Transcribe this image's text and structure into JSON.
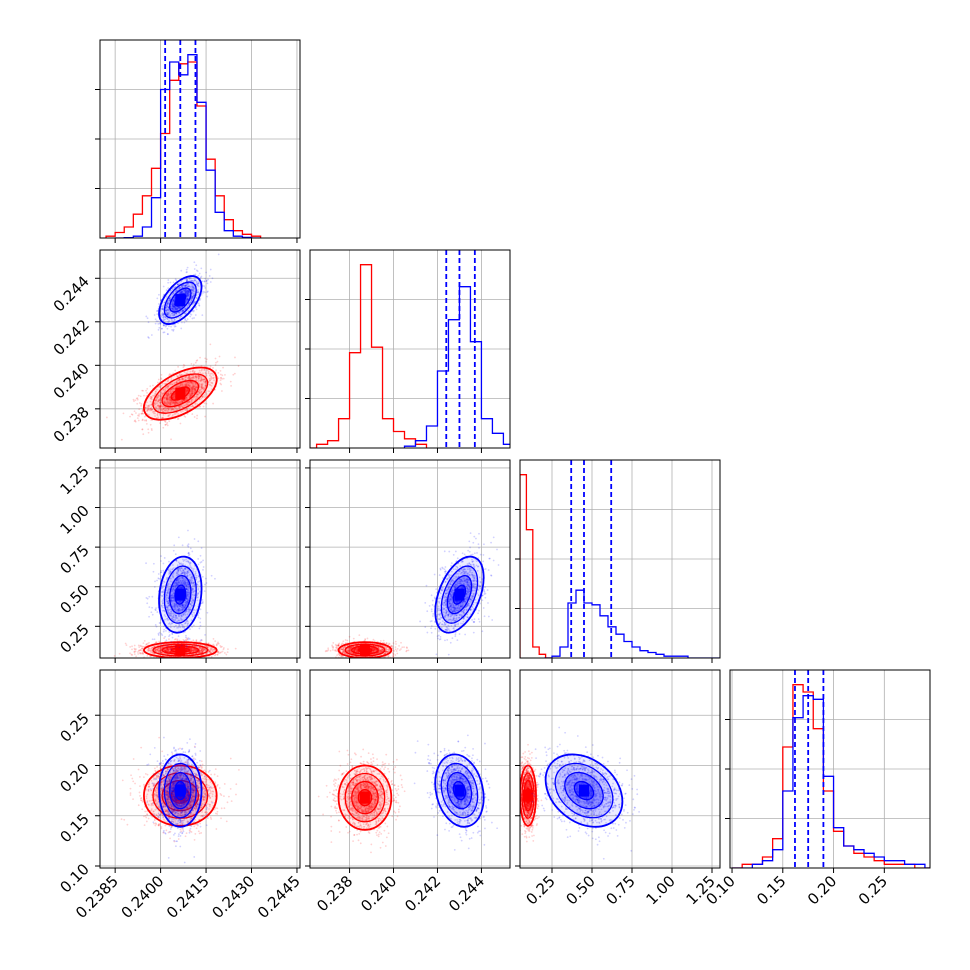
{
  "chart_data": {
    "type": "corner-plot",
    "colors": {
      "series_a": "#0000ff",
      "series_b": "#ff0000",
      "grid": "#b0b0b0",
      "frame": "#000000"
    },
    "series_names": [
      "blue",
      "red"
    ],
    "variables": [
      {
        "range": [
          0.238,
          0.2446
        ],
        "ticks": [
          0.2385,
          0.24,
          0.2415,
          0.243,
          0.2445
        ],
        "tick_labels": [
          "0.2385",
          "0.2400",
          "0.2415",
          "0.2430",
          "0.2445"
        ]
      },
      {
        "range": [
          0.2362,
          0.2453
        ],
        "ticks": [
          0.238,
          0.24,
          0.242,
          0.244
        ],
        "tick_labels": [
          "0.238",
          "0.240",
          "0.242",
          "0.244"
        ]
      },
      {
        "range": [
          0.05,
          1.3
        ],
        "ticks": [
          0.25,
          0.5,
          0.75,
          1.0,
          1.25
        ],
        "tick_labels": [
          "0.25",
          "0.50",
          "0.75",
          "1.00",
          "1.25"
        ]
      },
      {
        "range": [
          0.098,
          0.295
        ],
        "ticks": [
          0.1,
          0.15,
          0.2,
          0.25
        ],
        "tick_labels": [
          "0.10",
          "0.15",
          "0.20",
          "0.25"
        ]
      }
    ],
    "histograms": [
      {
        "var": 0,
        "quantiles": [
          0.24015,
          0.24065,
          0.24115
        ],
        "series": [
          {
            "name": "blue",
            "edges": [
              0.2385,
              0.2388,
              0.2391,
              0.2394,
              0.2397,
              0.24,
              0.2403,
              0.2406,
              0.2409,
              0.2412,
              0.2415,
              0.2418,
              0.2421,
              0.2424,
              0.2427,
              0.243,
              0.2433
            ],
            "counts": [
              0,
              0.2,
              1,
              6,
              22,
              81,
              96,
              89,
              100,
              74,
              37,
              14,
              4,
              1,
              0.3,
              0
            ]
          },
          {
            "name": "red",
            "edges": [
              0.2382,
              0.2385,
              0.2388,
              0.2391,
              0.2394,
              0.2397,
              0.24,
              0.2403,
              0.2406,
              0.2409,
              0.2412,
              0.2415,
              0.2418,
              0.2421,
              0.2424,
              0.2427,
              0.243,
              0.2433
            ],
            "counts": [
              1,
              3,
              6,
              13,
              23,
              38,
              57,
              86,
              95,
              96,
              72,
              43,
              23,
              10,
              4,
              2,
              1
            ]
          }
        ]
      },
      {
        "var": 1,
        "quantiles": [
          0.2424,
          0.243,
          0.2437
        ],
        "series": [
          {
            "name": "blue",
            "edges": [
              0.2405,
              0.241,
              0.2415,
              0.242,
              0.2425,
              0.243,
              0.2435,
              0.244,
              0.2445,
              0.245,
              0.2455
            ],
            "counts": [
              1,
              4,
              12,
              42,
              70,
              88,
              58,
              16,
              8,
              2
            ]
          },
          {
            "name": "red",
            "edges": [
              0.236,
              0.2365,
              0.237,
              0.2375,
              0.238,
              0.2385,
              0.239,
              0.2395,
              0.24,
              0.2405,
              0.241,
              0.2415
            ],
            "counts": [
              0,
              2,
              4,
              16,
              52,
              100,
              55,
              16,
              9,
              5,
              2
            ]
          }
        ]
      },
      {
        "var": 2,
        "quantiles": [
          0.37,
          0.45,
          0.62
        ],
        "series": [
          {
            "name": "blue",
            "edges": [
              0.2,
              0.25,
              0.3,
              0.35,
              0.4,
              0.45,
              0.5,
              0.55,
              0.6,
              0.65,
              0.7,
              0.75,
              0.8,
              0.85,
              0.9,
              0.95,
              1.0,
              1.1,
              1.3
            ],
            "counts": [
              0,
              1,
              6,
              30,
              37,
              30,
              29,
              23,
              17,
              13,
              9,
              6,
              4,
              3,
              2,
              1,
              1,
              0
            ]
          },
          {
            "name": "red",
            "edges": [
              0.05,
              0.09,
              0.13,
              0.17,
              0.21,
              0.25
            ],
            "counts": [
              100,
              70,
              6,
              2,
              0
            ]
          }
        ]
      },
      {
        "var": 3,
        "quantiles": [
          0.162,
          0.175,
          0.19
        ],
        "series": [
          {
            "name": "blue",
            "edges": [
              0.1,
              0.11,
              0.12,
              0.13,
              0.14,
              0.15,
              0.16,
              0.17,
              0.18,
              0.19,
              0.2,
              0.21,
              0.22,
              0.23,
              0.24,
              0.25,
              0.26,
              0.27,
              0.28,
              0.29,
              0.295
            ],
            "counts": [
              0,
              0,
              1,
              2,
              5,
              21,
              41,
              47,
              46,
              25,
              11,
              6,
              5,
              4,
              3,
              2,
              2,
              1,
              1,
              0
            ]
          },
          {
            "name": "red",
            "edges": [
              0.1,
              0.11,
              0.12,
              0.13,
              0.14,
              0.15,
              0.16,
              0.17,
              0.18,
              0.19,
              0.2,
              0.21,
              0.22,
              0.23,
              0.24,
              0.25,
              0.26,
              0.27,
              0.28,
              0.29,
              0.295
            ],
            "counts": [
              0,
              1,
              1,
              3,
              8,
              33,
              50,
              48,
              38,
              21,
              10,
              6,
              4,
              3,
              2,
              1,
              1,
              1,
              0,
              0
            ]
          }
        ]
      }
    ],
    "scatter_panels": [
      {
        "x_var": 0,
        "y_var": 1,
        "blobs": [
          {
            "name": "blue",
            "mean": [
              0.24065,
              0.243
            ],
            "sd": [
              0.00035,
              0.00055
            ],
            "rho": 0.55
          },
          {
            "name": "red",
            "mean": [
              0.24065,
              0.2387
            ],
            "sd": [
              0.0006,
              0.0006
            ],
            "rho": 0.55
          }
        ]
      },
      {
        "x_var": 0,
        "y_var": 2,
        "blobs": [
          {
            "name": "blue",
            "mean": [
              0.24065,
              0.45
            ],
            "sd": [
              0.00035,
              0.12
            ],
            "rho": 0.15
          },
          {
            "name": "red",
            "mean": [
              0.24065,
              0.1
            ],
            "sd": [
              0.0006,
              0.025
            ],
            "rho": 0.0
          }
        ]
      },
      {
        "x_var": 1,
        "y_var": 2,
        "blobs": [
          {
            "name": "blue",
            "mean": [
              0.243,
              0.45
            ],
            "sd": [
              0.00055,
              0.12
            ],
            "rho": 0.45
          },
          {
            "name": "red",
            "mean": [
              0.2387,
              0.1
            ],
            "sd": [
              0.0006,
              0.025
            ],
            "rho": 0.0
          }
        ]
      },
      {
        "x_var": 0,
        "y_var": 3,
        "blobs": [
          {
            "name": "blue",
            "mean": [
              0.24065,
              0.175
            ],
            "sd": [
              0.00035,
              0.018
            ],
            "rho": 0.0
          },
          {
            "name": "red",
            "mean": [
              0.24065,
              0.17
            ],
            "sd": [
              0.0006,
              0.015
            ],
            "rho": 0.0
          }
        ]
      },
      {
        "x_var": 1,
        "y_var": 3,
        "blobs": [
          {
            "name": "blue",
            "mean": [
              0.243,
              0.175
            ],
            "sd": [
              0.00055,
              0.018
            ],
            "rho": -0.2
          },
          {
            "name": "red",
            "mean": [
              0.2387,
              0.168
            ],
            "sd": [
              0.0006,
              0.016
            ],
            "rho": 0.0
          }
        ]
      },
      {
        "x_var": 2,
        "y_var": 3,
        "blobs": [
          {
            "name": "blue",
            "mean": [
              0.45,
              0.175
            ],
            "sd": [
              0.12,
              0.018
            ],
            "rho": -0.3
          },
          {
            "name": "red",
            "mean": [
              0.1,
              0.17
            ],
            "sd": [
              0.025,
              0.015
            ],
            "rho": 0.0
          }
        ]
      }
    ]
  }
}
